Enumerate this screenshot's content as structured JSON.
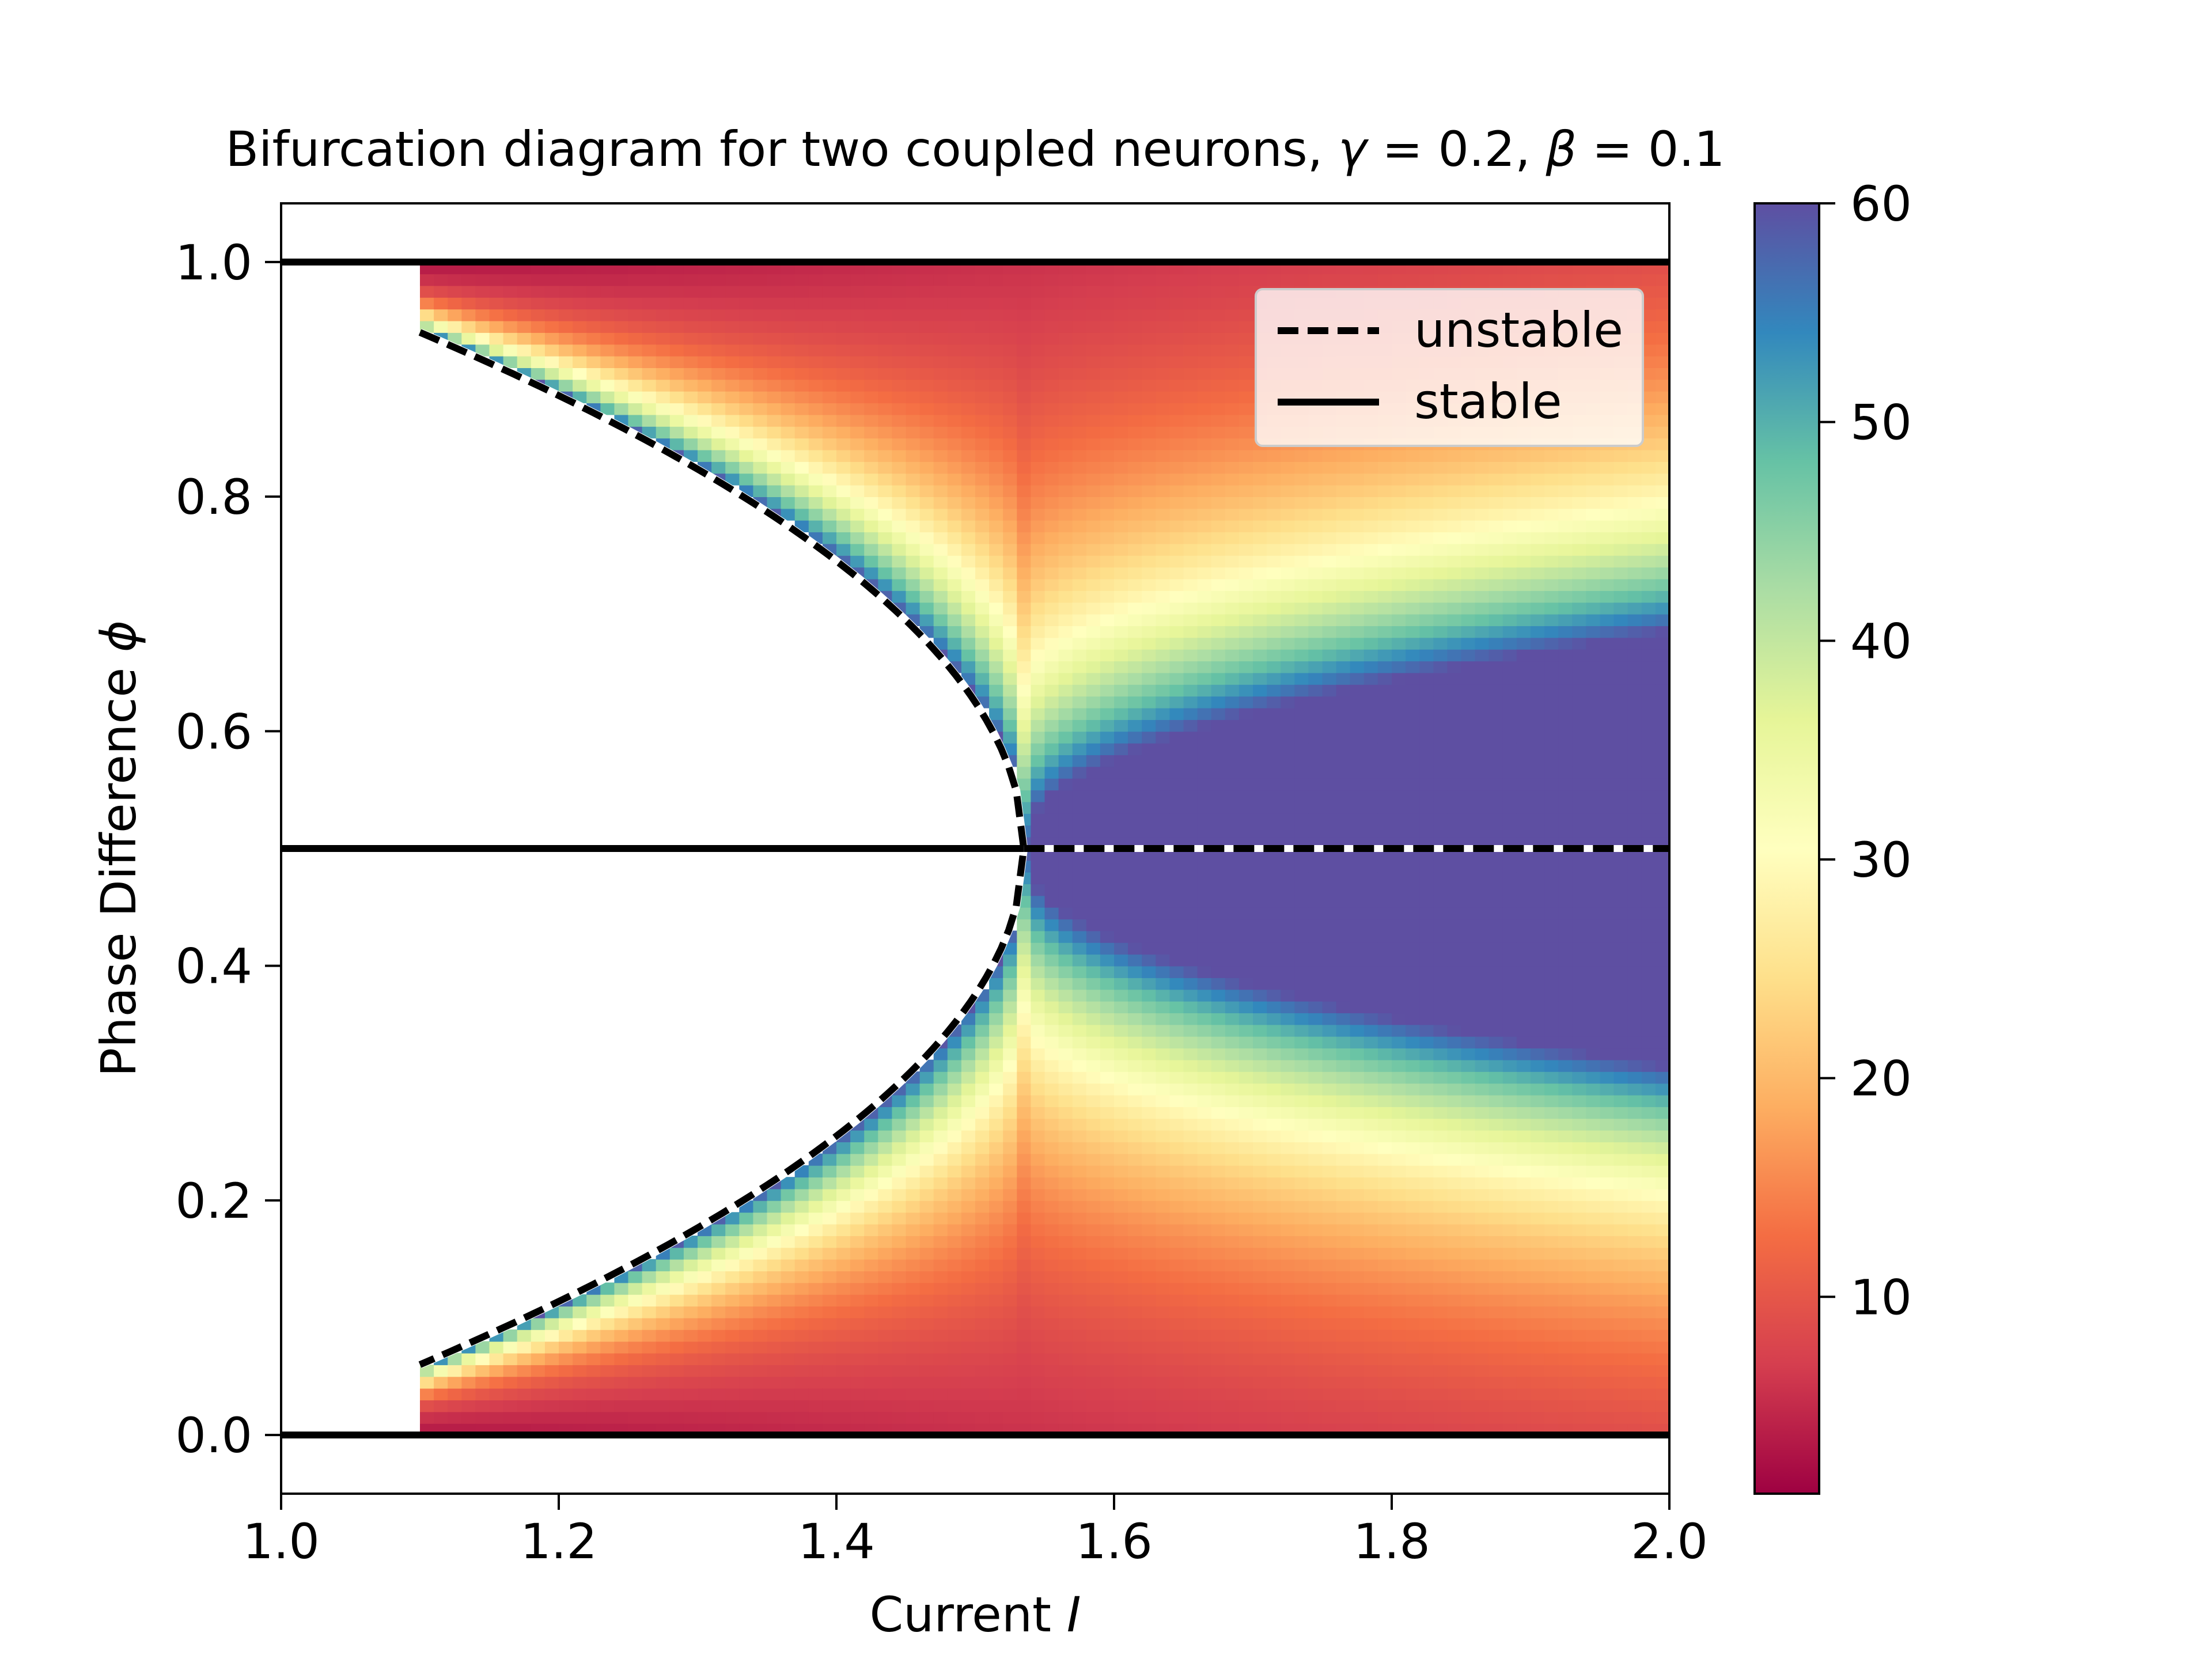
{
  "chart_data": {
    "type": "heatmap",
    "title_prefix": "Bifurcation diagram for two coupled neurons, ",
    "title_gamma_symbol": "γ",
    "title_gamma_eq": " = 0.2, ",
    "title_beta_symbol": "β",
    "title_beta_eq": " = 0.1",
    "xlabel_prefix": "Current ",
    "xlabel_symbol": "I",
    "ylabel_prefix": "Phase Difference ",
    "ylabel_symbol": "ϕ",
    "xlim": [
      1.0,
      2.0
    ],
    "ylim": [
      -0.05,
      1.05
    ],
    "x_ticks": [
      {
        "value": 1.0,
        "label": "1.0"
      },
      {
        "value": 1.2,
        "label": "1.2"
      },
      {
        "value": 1.4,
        "label": "1.4"
      },
      {
        "value": 1.6,
        "label": "1.6"
      },
      {
        "value": 1.8,
        "label": "1.8"
      },
      {
        "value": 2.0,
        "label": "2.0"
      }
    ],
    "y_ticks": [
      {
        "value": 0.0,
        "label": "0.0"
      },
      {
        "value": 0.2,
        "label": "0.2"
      },
      {
        "value": 0.4,
        "label": "0.4"
      },
      {
        "value": 0.6,
        "label": "0.6"
      },
      {
        "value": 0.8,
        "label": "0.8"
      },
      {
        "value": 1.0,
        "label": "1.0"
      }
    ],
    "colormap": "Spectral",
    "colorbar": {
      "min": 1,
      "max": 60,
      "ticks": [
        {
          "value": 10,
          "label": "10"
        },
        {
          "value": 20,
          "label": "20"
        },
        {
          "value": 30,
          "label": "30"
        },
        {
          "value": 40,
          "label": "40"
        },
        {
          "value": 50,
          "label": "50"
        },
        {
          "value": 60,
          "label": "60"
        }
      ]
    },
    "heatmap_region": {
      "x_start": 1.1,
      "x_end": 2.0,
      "y_start": 0.0,
      "y_end": 1.0
    },
    "bifurcation_point": {
      "current": 1.535,
      "phase": 0.5
    },
    "branch_width_at_onset": 0.44,
    "stable_lines": [
      {
        "phase": 0.0,
        "x_range": [
          1.0,
          2.0
        ]
      },
      {
        "phase": 1.0,
        "x_range": [
          1.0,
          2.0
        ]
      },
      {
        "phase": 0.5,
        "x_range": [
          1.0,
          1.535
        ]
      }
    ],
    "unstable_lines": [
      {
        "phase": 0.5,
        "x_range": [
          1.535,
          2.0
        ]
      }
    ],
    "legend": {
      "placement": "top-right",
      "entries": [
        {
          "label": "unstable",
          "style": "dashed"
        },
        {
          "label": "stable",
          "style": "solid"
        }
      ]
    }
  }
}
